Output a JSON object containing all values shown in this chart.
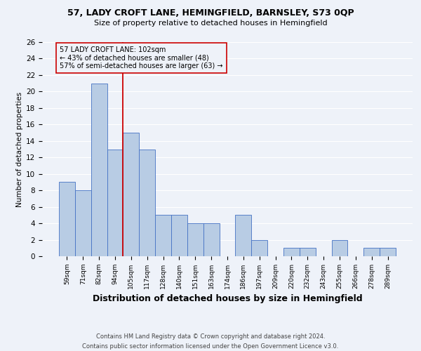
{
  "title1": "57, LADY CROFT LANE, HEMINGFIELD, BARNSLEY, S73 0QP",
  "title2": "Size of property relative to detached houses in Hemingfield",
  "xlabel": "Distribution of detached houses by size in Hemingfield",
  "ylabel": "Number of detached properties",
  "footer1": "Contains HM Land Registry data © Crown copyright and database right 2024.",
  "footer2": "Contains public sector information licensed under the Open Government Licence v3.0.",
  "annotation_line1": "57 LADY CROFT LANE: 102sqm",
  "annotation_line2": "← 43% of detached houses are smaller (48)",
  "annotation_line3": "57% of semi-detached houses are larger (63) →",
  "bin_labels": [
    "59sqm",
    "71sqm",
    "82sqm",
    "94sqm",
    "105sqm",
    "117sqm",
    "128sqm",
    "140sqm",
    "151sqm",
    "163sqm",
    "174sqm",
    "186sqm",
    "197sqm",
    "209sqm",
    "220sqm",
    "232sqm",
    "243sqm",
    "255sqm",
    "266sqm",
    "278sqm",
    "289sqm"
  ],
  "bar_values": [
    9,
    8,
    21,
    13,
    15,
    13,
    5,
    5,
    4,
    4,
    0,
    5,
    2,
    0,
    1,
    1,
    0,
    2,
    0,
    1,
    1
  ],
  "bar_color": "#b8cce4",
  "bar_edge_color": "#4472c4",
  "vline_x": 3.5,
  "vline_color": "#cc0000",
  "annotation_box_color": "#cc0000",
  "background_color": "#eef2f9",
  "grid_color": "#ffffff",
  "ylim": [
    0,
    26
  ],
  "yticks": [
    0,
    2,
    4,
    6,
    8,
    10,
    12,
    14,
    16,
    18,
    20,
    22,
    24,
    26
  ],
  "title1_fontsize": 9,
  "title2_fontsize": 8,
  "xlabel_fontsize": 9,
  "ylabel_fontsize": 7.5,
  "xtick_fontsize": 6.5,
  "ytick_fontsize": 7.5,
  "annot_fontsize": 7,
  "footer_fontsize": 6
}
